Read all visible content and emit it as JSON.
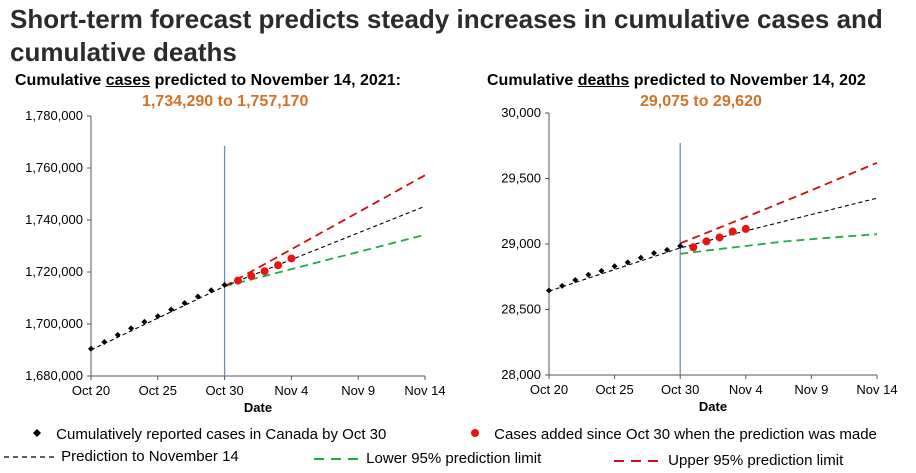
{
  "page_title_line1": "Short-term forecast predicts steady increases in cumulative cases and",
  "page_title_line2": "cumulative deaths",
  "colors": {
    "observed": "#000000",
    "added": "#ee1111",
    "prediction": "#000000",
    "lower": "#22aa44",
    "upper": "#cc1111",
    "vline": "#6a8fb5",
    "range_text": "#d27128"
  },
  "legend": {
    "observed": "Cumulatively reported cases in Canada by Oct 30",
    "added": "Cases added since Oct 30 when the prediction was made",
    "prediction": "Prediction to November 14",
    "lower": "Lower 95% prediction limit",
    "upper": "Upper 95% prediction limit"
  },
  "chart_data": [
    {
      "id": "cases",
      "type": "line",
      "title_pre": "Cumulative ",
      "title_u": "cases",
      "title_post": " predicted to November 14, 2021:",
      "range_text": "1,734,290 to 1,757,170",
      "xlabel": "Date",
      "x_ticks": [
        "Oct 20",
        "Oct 25",
        "Oct 30",
        "Nov 4",
        "Nov 9",
        "Nov 14"
      ],
      "y_ticks": [
        "1,680,000",
        "1,700,000",
        "1,720,000",
        "1,740,000",
        "1,760,000",
        "1,780,000"
      ],
      "ylim": [
        1680000,
        1780000
      ],
      "xlim": [
        0,
        25
      ],
      "prediction_day": 10,
      "observed": {
        "x": [
          0,
          1,
          2,
          3,
          4,
          5,
          6,
          7,
          8,
          9,
          10
        ],
        "y": [
          1690500,
          1693100,
          1695800,
          1698300,
          1700800,
          1703000,
          1705600,
          1708100,
          1710600,
          1713000,
          1715000
        ]
      },
      "added": {
        "x": [
          11,
          12,
          13,
          14,
          15
        ],
        "y": [
          1716700,
          1718500,
          1720300,
          1722600,
          1725200
        ]
      },
      "prediction": {
        "x": [
          0,
          10,
          25
        ],
        "y": [
          1690000,
          1714500,
          1745300
        ]
      },
      "lower": {
        "x": [
          10,
          25
        ],
        "y": [
          1714500,
          1734300
        ]
      },
      "upper": {
        "x": [
          10,
          25
        ],
        "y": [
          1714500,
          1757200
        ]
      }
    },
    {
      "id": "deaths",
      "type": "line",
      "title_pre": "Cumulative ",
      "title_u": "deaths",
      "title_post": " predicted to November 14, 202",
      "range_text": "29,075 to 29,620",
      "xlabel": "Date",
      "x_ticks": [
        "Oct 20",
        "Oct 25",
        "Oct 30",
        "Nov 4",
        "Nov 9",
        "Nov 14"
      ],
      "y_ticks": [
        "28,000",
        "28,500",
        "29,000",
        "29,500",
        "30,000"
      ],
      "ylim": [
        28000,
        30000
      ],
      "xlim": [
        0,
        25
      ],
      "prediction_day": 10,
      "observed": {
        "x": [
          0,
          1,
          2,
          3,
          4,
          5,
          6,
          7,
          8,
          9,
          10
        ],
        "y": [
          28645,
          28680,
          28725,
          28765,
          28795,
          28830,
          28860,
          28895,
          28930,
          28955,
          28985
        ]
      },
      "added": {
        "x": [
          11,
          12,
          13,
          14,
          15
        ],
        "y": [
          28975,
          29020,
          29050,
          29095,
          29115
        ]
      },
      "prediction": {
        "x": [
          0,
          10,
          15,
          20,
          25
        ],
        "y": [
          28640,
          28970,
          29100,
          29225,
          29350
        ]
      },
      "lower": {
        "x": [
          10,
          12,
          15,
          18,
          21,
          25
        ],
        "y": [
          28925,
          28950,
          28985,
          29020,
          29045,
          29075
        ]
      },
      "upper": {
        "x": [
          10,
          15,
          20,
          25
        ],
        "y": [
          29005,
          29205,
          29410,
          29620
        ]
      }
    }
  ]
}
